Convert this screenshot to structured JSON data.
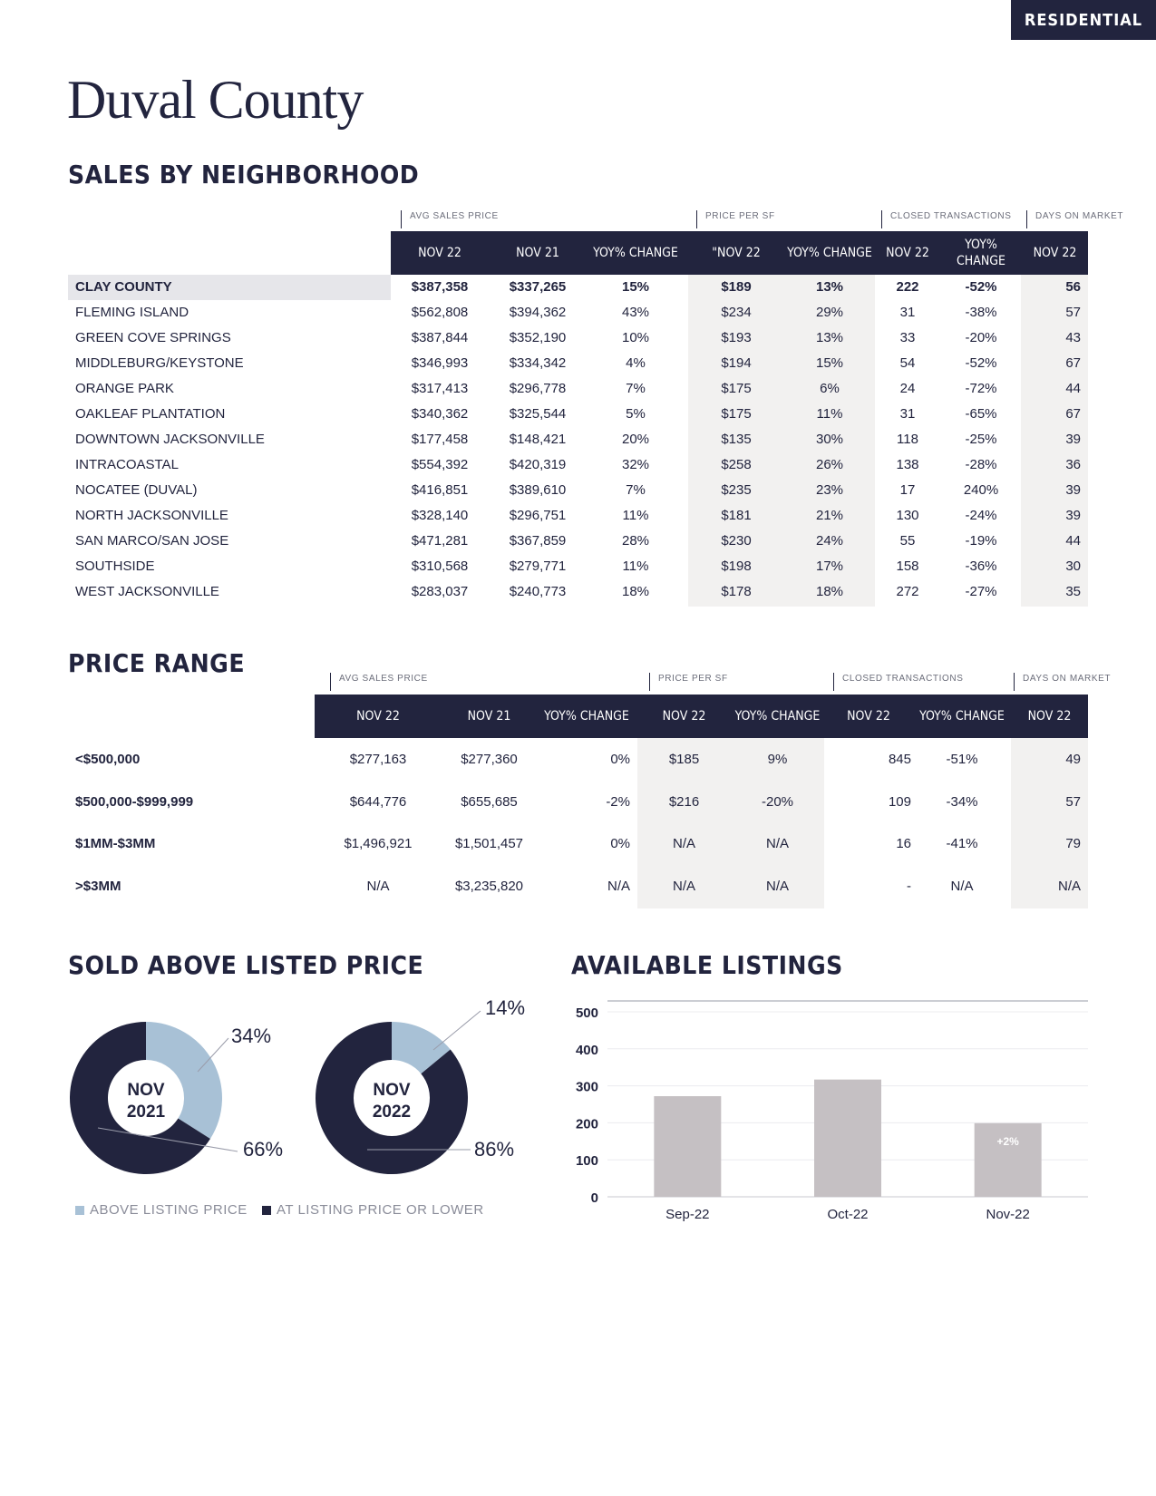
{
  "badge": "RESIDENTIAL",
  "page_title": "Duval County",
  "neighborhood": {
    "title": "SALES BY NEIGHBORHOOD",
    "groups": [
      "AVG SALES PRICE",
      "PRICE PER SF",
      "CLOSED TRANSACTIONS",
      "DAYS ON MARKET"
    ],
    "columns": [
      "NOV 22",
      "NOV 21",
      "YOY% CHANGE",
      "\"NOV 22",
      "YOY% CHANGE",
      "NOV 22",
      "YOY% CHANGE",
      "NOV 22"
    ],
    "rows": [
      {
        "name": "CLAY COUNTY",
        "cells": [
          "$387,358",
          "$337,265",
          "15%",
          "$189",
          "13%",
          "222",
          "-52%",
          "56"
        ]
      },
      {
        "name": "FLEMING ISLAND",
        "cells": [
          "$562,808",
          "$394,362",
          "43%",
          "$234",
          "29%",
          "31",
          "-38%",
          "57"
        ]
      },
      {
        "name": "GREEN COVE SPRINGS",
        "cells": [
          "$387,844",
          "$352,190",
          "10%",
          "$193",
          "13%",
          "33",
          "-20%",
          "43"
        ]
      },
      {
        "name": "MIDDLEBURG/KEYSTONE",
        "cells": [
          "$346,993",
          "$334,342",
          "4%",
          "$194",
          "15%",
          "54",
          "-52%",
          "67"
        ]
      },
      {
        "name": "ORANGE PARK",
        "cells": [
          "$317,413",
          "$296,778",
          "7%",
          "$175",
          "6%",
          "24",
          "-72%",
          "44"
        ]
      },
      {
        "name": "OAKLEAF PLANTATION",
        "cells": [
          "$340,362",
          "$325,544",
          "5%",
          "$175",
          "11%",
          "31",
          "-65%",
          "67"
        ]
      },
      {
        "name": "DOWNTOWN JACKSONVILLE",
        "cells": [
          "$177,458",
          "$148,421",
          "20%",
          "$135",
          "30%",
          "118",
          "-25%",
          "39"
        ]
      },
      {
        "name": "INTRACOASTAL",
        "cells": [
          "$554,392",
          "$420,319",
          "32%",
          "$258",
          "26%",
          "138",
          "-28%",
          "36"
        ]
      },
      {
        "name": "NOCATEE (DUVAL)",
        "cells": [
          "$416,851",
          "$389,610",
          "7%",
          "$235",
          "23%",
          "17",
          "240%",
          "39"
        ]
      },
      {
        "name": "NORTH JACKSONVILLE",
        "cells": [
          "$328,140",
          "$296,751",
          "11%",
          "$181",
          "21%",
          "130",
          "-24%",
          "39"
        ]
      },
      {
        "name": "SAN MARCO/SAN JOSE",
        "cells": [
          "$471,281",
          "$367,859",
          "28%",
          "$230",
          "24%",
          "55",
          "-19%",
          "44"
        ]
      },
      {
        "name": "SOUTHSIDE",
        "cells": [
          "$310,568",
          "$279,771",
          "11%",
          "$198",
          "17%",
          "158",
          "-36%",
          "30"
        ]
      },
      {
        "name": "WEST JACKSONVILLE",
        "cells": [
          "$283,037",
          "$240,773",
          "18%",
          "$178",
          "18%",
          "272",
          "-27%",
          "35"
        ]
      }
    ]
  },
  "price_range": {
    "title": "PRICE RANGE",
    "groups": [
      "AVG SALES PRICE",
      "PRICE PER SF",
      "CLOSED TRANSACTIONS",
      "DAYS ON MARKET"
    ],
    "columns": [
      "NOV 22",
      "NOV 21",
      "YOY% CHANGE",
      "NOV 22",
      "YOY% CHANGE",
      "NOV 22",
      "YOY% CHANGE",
      "NOV 22"
    ],
    "rows": [
      {
        "name": "<$500,000",
        "cells": [
          "$277,163",
          "$277,360",
          "0%",
          "$185",
          "9%",
          "845",
          "-51%",
          "49"
        ]
      },
      {
        "name": "$500,000-$999,999",
        "cells": [
          "$644,776",
          "$655,685",
          "-2%",
          "$216",
          "-20%",
          "109",
          "-34%",
          "57"
        ]
      },
      {
        "name": "$1MM-$3MM",
        "cells": [
          "$1,496,921",
          "$1,501,457",
          "0%",
          "N/A",
          "N/A",
          "16",
          "-41%",
          "79"
        ]
      },
      {
        "name": ">$3MM",
        "cells": [
          "N/A",
          "$3,235,820",
          "N/A",
          "N/A",
          "N/A",
          "-",
          "N/A",
          "N/A"
        ]
      }
    ]
  },
  "sold_above": {
    "title": "SOLD ABOVE LISTED PRICE",
    "legend": [
      "ABOVE LISTING PRICE",
      "AT LISTING PRICE OR LOWER"
    ],
    "colors": {
      "above": "#a8c1d6",
      "at_or_lower": "#22243e"
    }
  },
  "available": {
    "title": "AVAILABLE LISTINGS",
    "bar_color": "#c5c0c3",
    "bar_label": "+2%"
  },
  "chart_data": [
    {
      "type": "pie",
      "center_label": [
        "NOV",
        "2021"
      ],
      "categories": [
        "ABOVE LISTING PRICE",
        "AT LISTING PRICE OR LOWER"
      ],
      "values": [
        34,
        66
      ],
      "labels": [
        "34%",
        "66%"
      ]
    },
    {
      "type": "pie",
      "center_label": [
        "NOV",
        "2022"
      ],
      "categories": [
        "ABOVE LISTING PRICE",
        "AT LISTING PRICE OR LOWER"
      ],
      "values": [
        14,
        86
      ],
      "labels": [
        "14%",
        "86%"
      ]
    },
    {
      "type": "bar",
      "categories": [
        "Sep-22",
        "Oct-22",
        "Nov-22"
      ],
      "values": [
        272,
        317,
        199
      ],
      "ylim": [
        0,
        500
      ],
      "yticks": [
        0,
        100,
        200,
        300,
        400,
        500
      ],
      "grid": true
    }
  ]
}
